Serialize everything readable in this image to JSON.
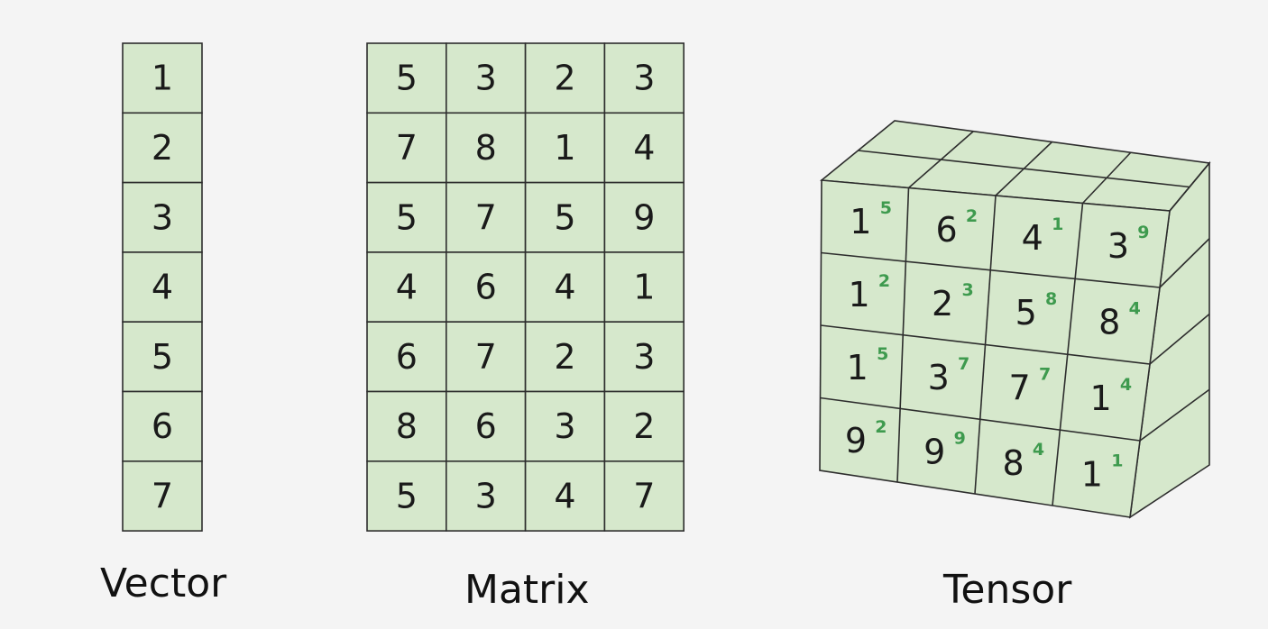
{
  "colors": {
    "cell_fill": "#d6e8cc",
    "stroke": "#2d2d2d",
    "exponent": "#3e9a4e",
    "background": "#f4f4f4"
  },
  "vector": {
    "label": "Vector",
    "values": [
      "1",
      "2",
      "3",
      "4",
      "5",
      "6",
      "7"
    ]
  },
  "matrix": {
    "label": "Matrix",
    "rows": [
      [
        "5",
        "3",
        "2",
        "3"
      ],
      [
        "7",
        "8",
        "1",
        "4"
      ],
      [
        "5",
        "7",
        "5",
        "9"
      ],
      [
        "4",
        "6",
        "4",
        "1"
      ],
      [
        "6",
        "7",
        "2",
        "3"
      ],
      [
        "8",
        "6",
        "3",
        "2"
      ],
      [
        "5",
        "3",
        "4",
        "7"
      ]
    ]
  },
  "tensor": {
    "label": "Tensor",
    "rows": [
      [
        {
          "v": "1",
          "s": "5"
        },
        {
          "v": "6",
          "s": "2"
        },
        {
          "v": "4",
          "s": "1"
        },
        {
          "v": "3",
          "s": "9"
        }
      ],
      [
        {
          "v": "1",
          "s": "2"
        },
        {
          "v": "2",
          "s": "3"
        },
        {
          "v": "5",
          "s": "8"
        },
        {
          "v": "8",
          "s": "4"
        }
      ],
      [
        {
          "v": "1",
          "s": "5"
        },
        {
          "v": "3",
          "s": "7"
        },
        {
          "v": "7",
          "s": "7"
        },
        {
          "v": "1",
          "s": "4"
        }
      ],
      [
        {
          "v": "9",
          "s": "2"
        },
        {
          "v": "9",
          "s": "9"
        },
        {
          "v": "8",
          "s": "4"
        },
        {
          "v": "1",
          "s": "1"
        }
      ]
    ]
  }
}
